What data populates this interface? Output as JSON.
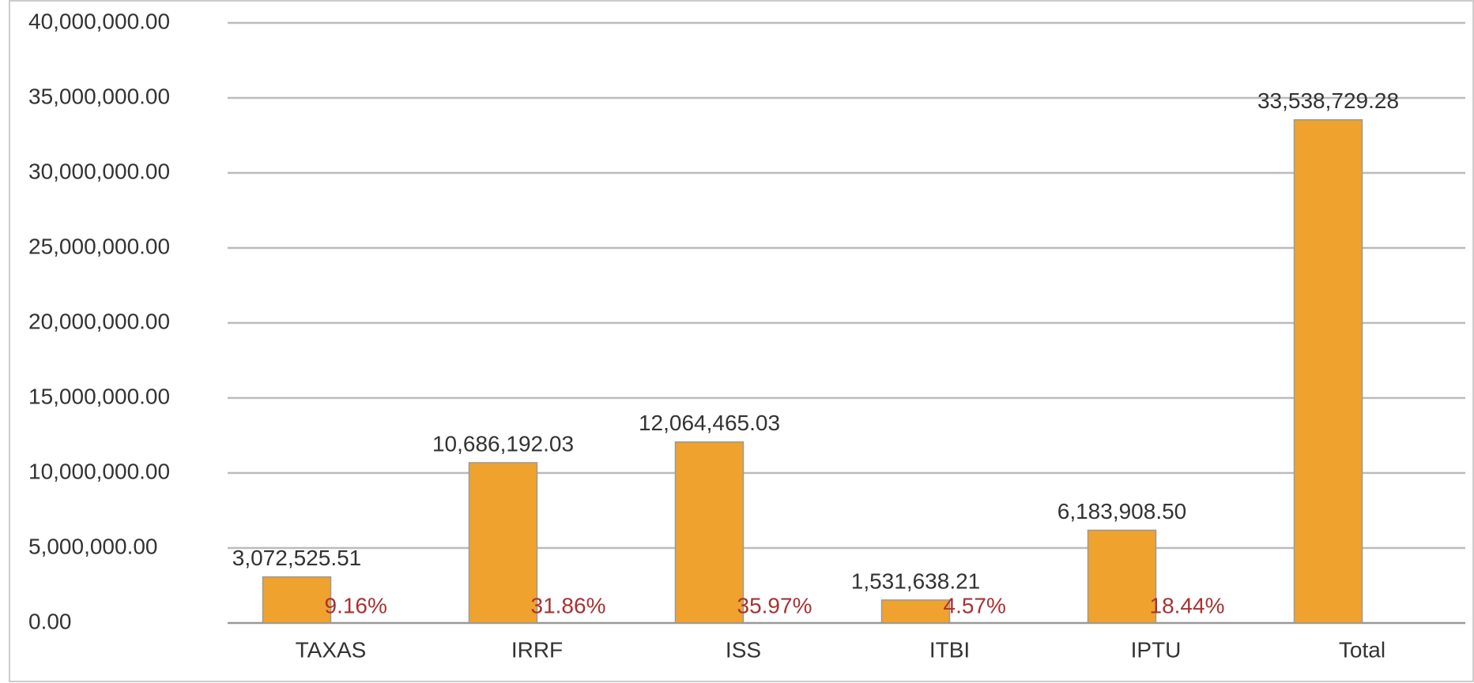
{
  "chart_data": {
    "type": "bar",
    "categories": [
      "TAXAS",
      "IRRF",
      "ISS",
      "ITBI",
      "IPTU",
      "Total"
    ],
    "values": [
      3072525.51,
      10686192.03,
      12064465.03,
      1531638.21,
      6183908.5,
      33538729.28
    ],
    "value_labels": [
      "3,072,525.51",
      "10,686,192.03",
      "12,064,465.03",
      "1,531,638.21",
      "6,183,908.50",
      "33,538,729.28"
    ],
    "percentages": [
      9.16,
      31.86,
      35.97,
      4.57,
      18.44,
      null
    ],
    "percentage_labels": [
      "9.16%",
      "31.86%",
      "35.97%",
      "4.57%",
      "18.44%",
      null
    ],
    "color": "#f0a22e",
    "percentage_color": "#a83232",
    "ylim": [
      0,
      40000000
    ],
    "yticks": [
      {
        "value": 0,
        "label": "0.00"
      },
      {
        "value": 5000000,
        "label": "5,000,000.00"
      },
      {
        "value": 10000000,
        "label": "10,000,000.00"
      },
      {
        "value": 15000000,
        "label": "15,000,000.00"
      },
      {
        "value": 20000000,
        "label": "20,000,000.00"
      },
      {
        "value": 25000000,
        "label": "25,000,000.00"
      },
      {
        "value": 30000000,
        "label": "30,000,000.00"
      },
      {
        "value": 35000000,
        "label": "35,000,000.00"
      },
      {
        "value": 40000000,
        "label": "40,000,000.00"
      }
    ],
    "grid": true
  }
}
